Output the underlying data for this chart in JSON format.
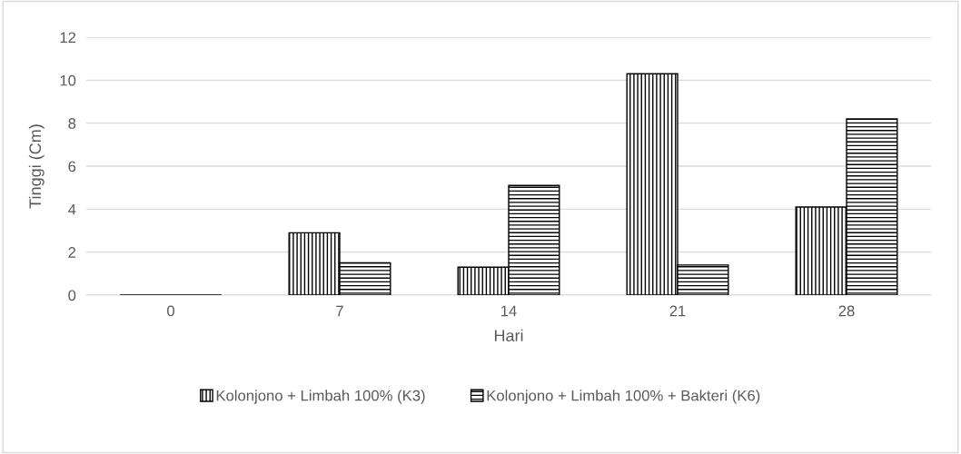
{
  "chart_data": {
    "type": "bar",
    "xlabel": "Hari",
    "ylabel": "Tinggi (Cm)",
    "categories": [
      "0",
      "7",
      "14",
      "21",
      "28"
    ],
    "series": [
      {
        "name": "Kolonjono + Limbah 100% (K3)",
        "color": "#000000",
        "values": [
          0,
          2.9,
          1.3,
          10.3,
          4.1
        ]
      },
      {
        "name": "Kolonjono + Limbah 100% + Bakteri (K6)",
        "color": "#000000",
        "values": [
          0,
          1.5,
          5.1,
          1.4,
          8.2
        ]
      }
    ],
    "ylim": [
      0,
      12
    ],
    "yticks": [
      0,
      2,
      4,
      6,
      8,
      10,
      12
    ],
    "grid": "y",
    "legend": "bottom"
  }
}
